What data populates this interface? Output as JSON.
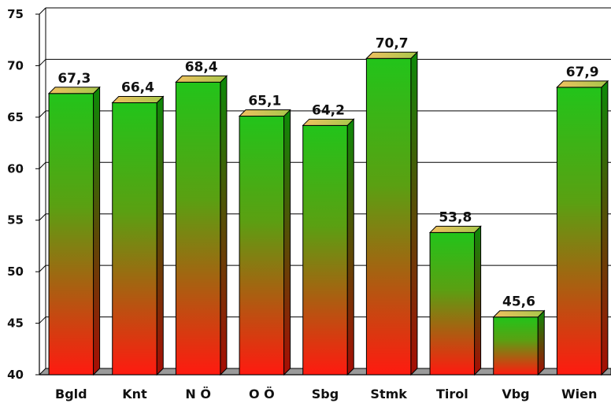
{
  "chart_data": {
    "type": "bar",
    "title": "",
    "xlabel": "",
    "ylabel": "",
    "categories": [
      "Bgld",
      "Knt",
      "N Ö",
      "O Ö",
      "Sbg",
      "Stmk",
      "Tirol",
      "Vbg",
      "Wien"
    ],
    "values": [
      67.3,
      66.4,
      68.4,
      65.1,
      64.2,
      70.7,
      53.8,
      45.6,
      67.9
    ],
    "value_labels": [
      "67,3",
      "66,4",
      "68,4",
      "65,1",
      "64,2",
      "70,7",
      "53,8",
      "45,6",
      "67,9"
    ],
    "ylim": [
      40,
      75
    ],
    "y_ticks": [
      40,
      45,
      50,
      55,
      60,
      65,
      70,
      75
    ],
    "y_tick_labels": [
      "40",
      "45",
      "50",
      "55",
      "60",
      "65",
      "70",
      "75"
    ],
    "grid": true,
    "legend": "none",
    "style": "3d-bars",
    "colors": {
      "bar_top_gradient": "#22c41a",
      "bar_bottom_gradient": "#ff1a10",
      "bar_side_top": "#0d8a08",
      "bar_side_bottom": "#a80d05",
      "bar_cap_light": "#f0c060",
      "bar_cap_dark": "#a7c84a",
      "grid": "#000000",
      "text": "#111111"
    }
  }
}
